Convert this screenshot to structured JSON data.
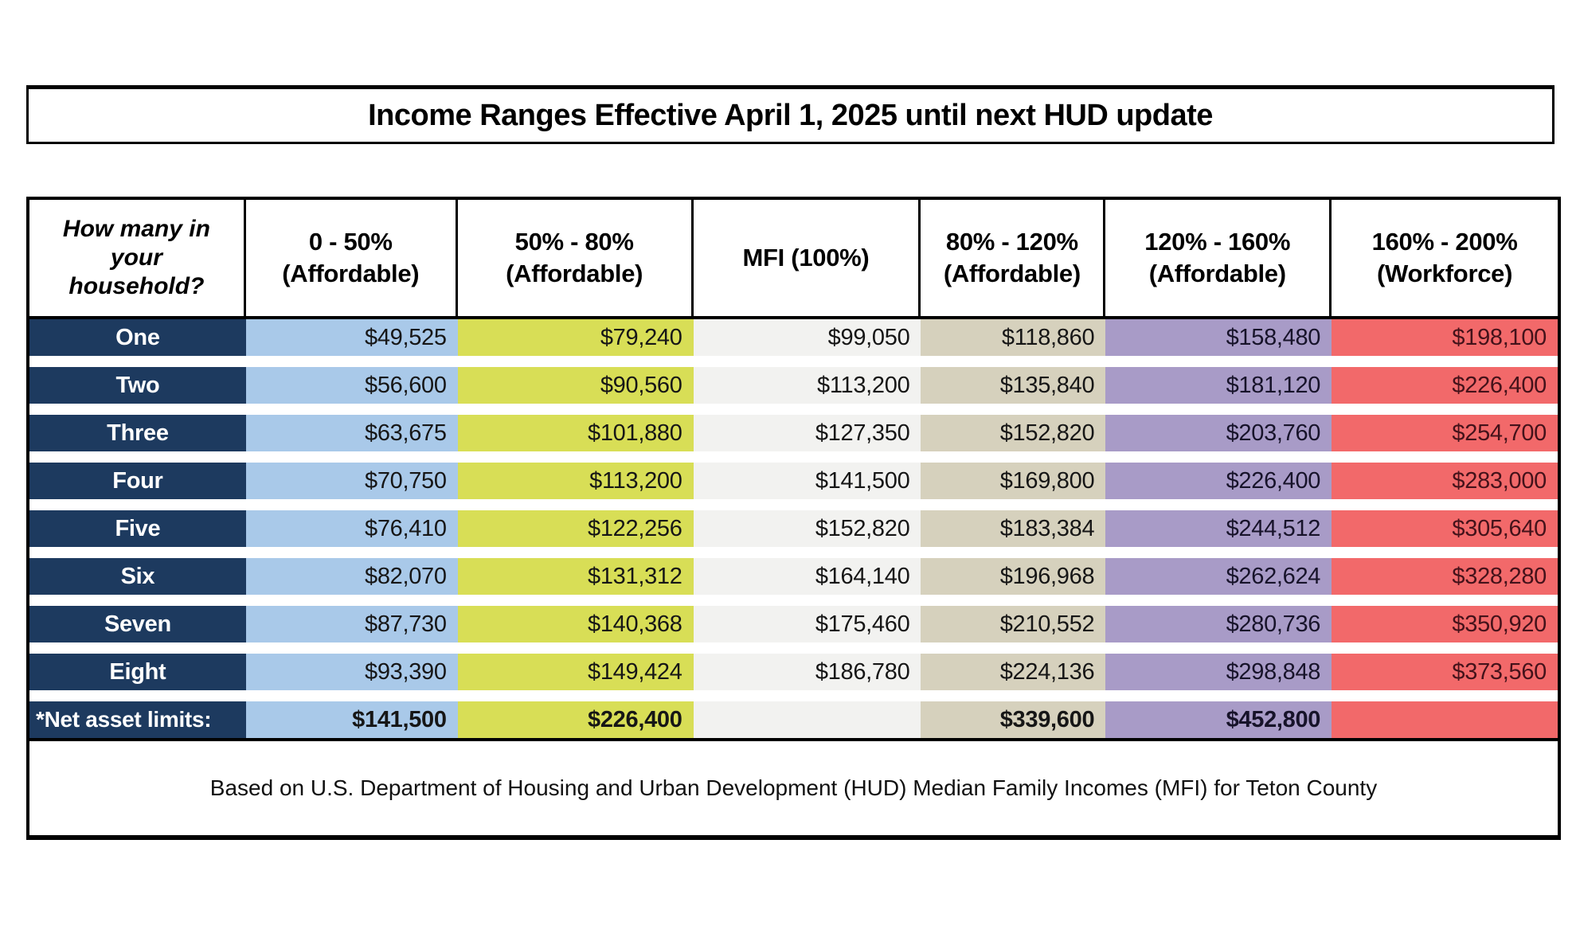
{
  "title": "Income Ranges Effective April 1, 2025 until next HUD update",
  "table": {
    "row_header_lines": "How many in\nyour\nhousehold?",
    "columns": [
      {
        "label": "0 - 50%",
        "sublabel": "(Affordable)",
        "bg": "#a9c9e9",
        "text": "#161616"
      },
      {
        "label": "50% - 80%",
        "sublabel": "(Affordable)",
        "bg": "#d8de56",
        "text": "#161616"
      },
      {
        "label": "MFI (100%)",
        "sublabel": "",
        "bg": "#f2f2f0",
        "text": "#161616"
      },
      {
        "label": "80% - 120%",
        "sublabel": "(Affordable)",
        "bg": "#d6d1bd",
        "text": "#161616"
      },
      {
        "label": "120% - 160%",
        "sublabel": "(Affordable)",
        "bg": "#a89bc7",
        "text": "#17132a"
      },
      {
        "label": "160% - 200%",
        "sublabel": "(Workforce)",
        "bg": "#f2696a",
        "text": "#44121a"
      }
    ],
    "rows": [
      {
        "label": "One",
        "values": [
          "$49,525",
          "$79,240",
          "$99,050",
          "$118,860",
          "$158,480",
          "$198,100"
        ]
      },
      {
        "label": "Two",
        "values": [
          "$56,600",
          "$90,560",
          "$113,200",
          "$135,840",
          "$181,120",
          "$226,400"
        ]
      },
      {
        "label": "Three",
        "values": [
          "$63,675",
          "$101,880",
          "$127,350",
          "$152,820",
          "$203,760",
          "$254,700"
        ]
      },
      {
        "label": "Four",
        "values": [
          "$70,750",
          "$113,200",
          "$141,500",
          "$169,800",
          "$226,400",
          "$283,000"
        ]
      },
      {
        "label": "Five",
        "values": [
          "$76,410",
          "$122,256",
          "$152,820",
          "$183,384",
          "$244,512",
          "$305,640"
        ]
      },
      {
        "label": "Six",
        "values": [
          "$82,070",
          "$131,312",
          "$164,140",
          "$196,968",
          "$262,624",
          "$328,280"
        ]
      },
      {
        "label": "Seven",
        "values": [
          "$87,730",
          "$140,368",
          "$175,460",
          "$210,552",
          "$280,736",
          "$350,920"
        ]
      },
      {
        "label": "Eight",
        "values": [
          "$93,390",
          "$149,424",
          "$186,780",
          "$224,136",
          "$298,848",
          "$373,560"
        ]
      }
    ],
    "net_asset_row": {
      "label": "*Net asset limits:",
      "values": [
        "$141,500",
        "$226,400",
        "",
        "$339,600",
        "$452,800",
        ""
      ]
    },
    "footer": "Based on U.S. Department of Housing and Urban Development (HUD) Median Family Incomes (MFI) for Teton County"
  },
  "colors": {
    "label_column_bg": "#1d3a5f",
    "label_text": "#ffffff",
    "border": "#000000",
    "row_gap": "#ffffff",
    "page_bg": "#ffffff"
  },
  "chart_data": {
    "type": "table",
    "title": "Income Ranges Effective April 1, 2025 until next HUD update",
    "columns": [
      "How many in your household?",
      "0 - 50% (Affordable)",
      "50% - 80% (Affordable)",
      "MFI (100%)",
      "80% - 120% (Affordable)",
      "120% - 160% (Affordable)",
      "160% - 200% (Workforce)"
    ],
    "rows": [
      [
        "One",
        49525,
        79240,
        99050,
        118860,
        158480,
        198100
      ],
      [
        "Two",
        56600,
        90560,
        113200,
        135840,
        181120,
        226400
      ],
      [
        "Three",
        63675,
        101880,
        127350,
        152820,
        203760,
        254700
      ],
      [
        "Four",
        70750,
        113200,
        141500,
        169800,
        226400,
        283000
      ],
      [
        "Five",
        76410,
        122256,
        152820,
        183384,
        244512,
        305640
      ],
      [
        "Six",
        82070,
        131312,
        164140,
        196968,
        262624,
        328280
      ],
      [
        "Seven",
        87730,
        140368,
        175460,
        210552,
        280736,
        350920
      ],
      [
        "Eight",
        93390,
        149424,
        186780,
        224136,
        298848,
        373560
      ],
      [
        "*Net asset limits:",
        141500,
        226400,
        null,
        339600,
        452800,
        null
      ]
    ],
    "annotations": [
      "Based on U.S. Department of Housing and Urban Development (HUD) Median Family Incomes (MFI) for Teton County"
    ]
  }
}
